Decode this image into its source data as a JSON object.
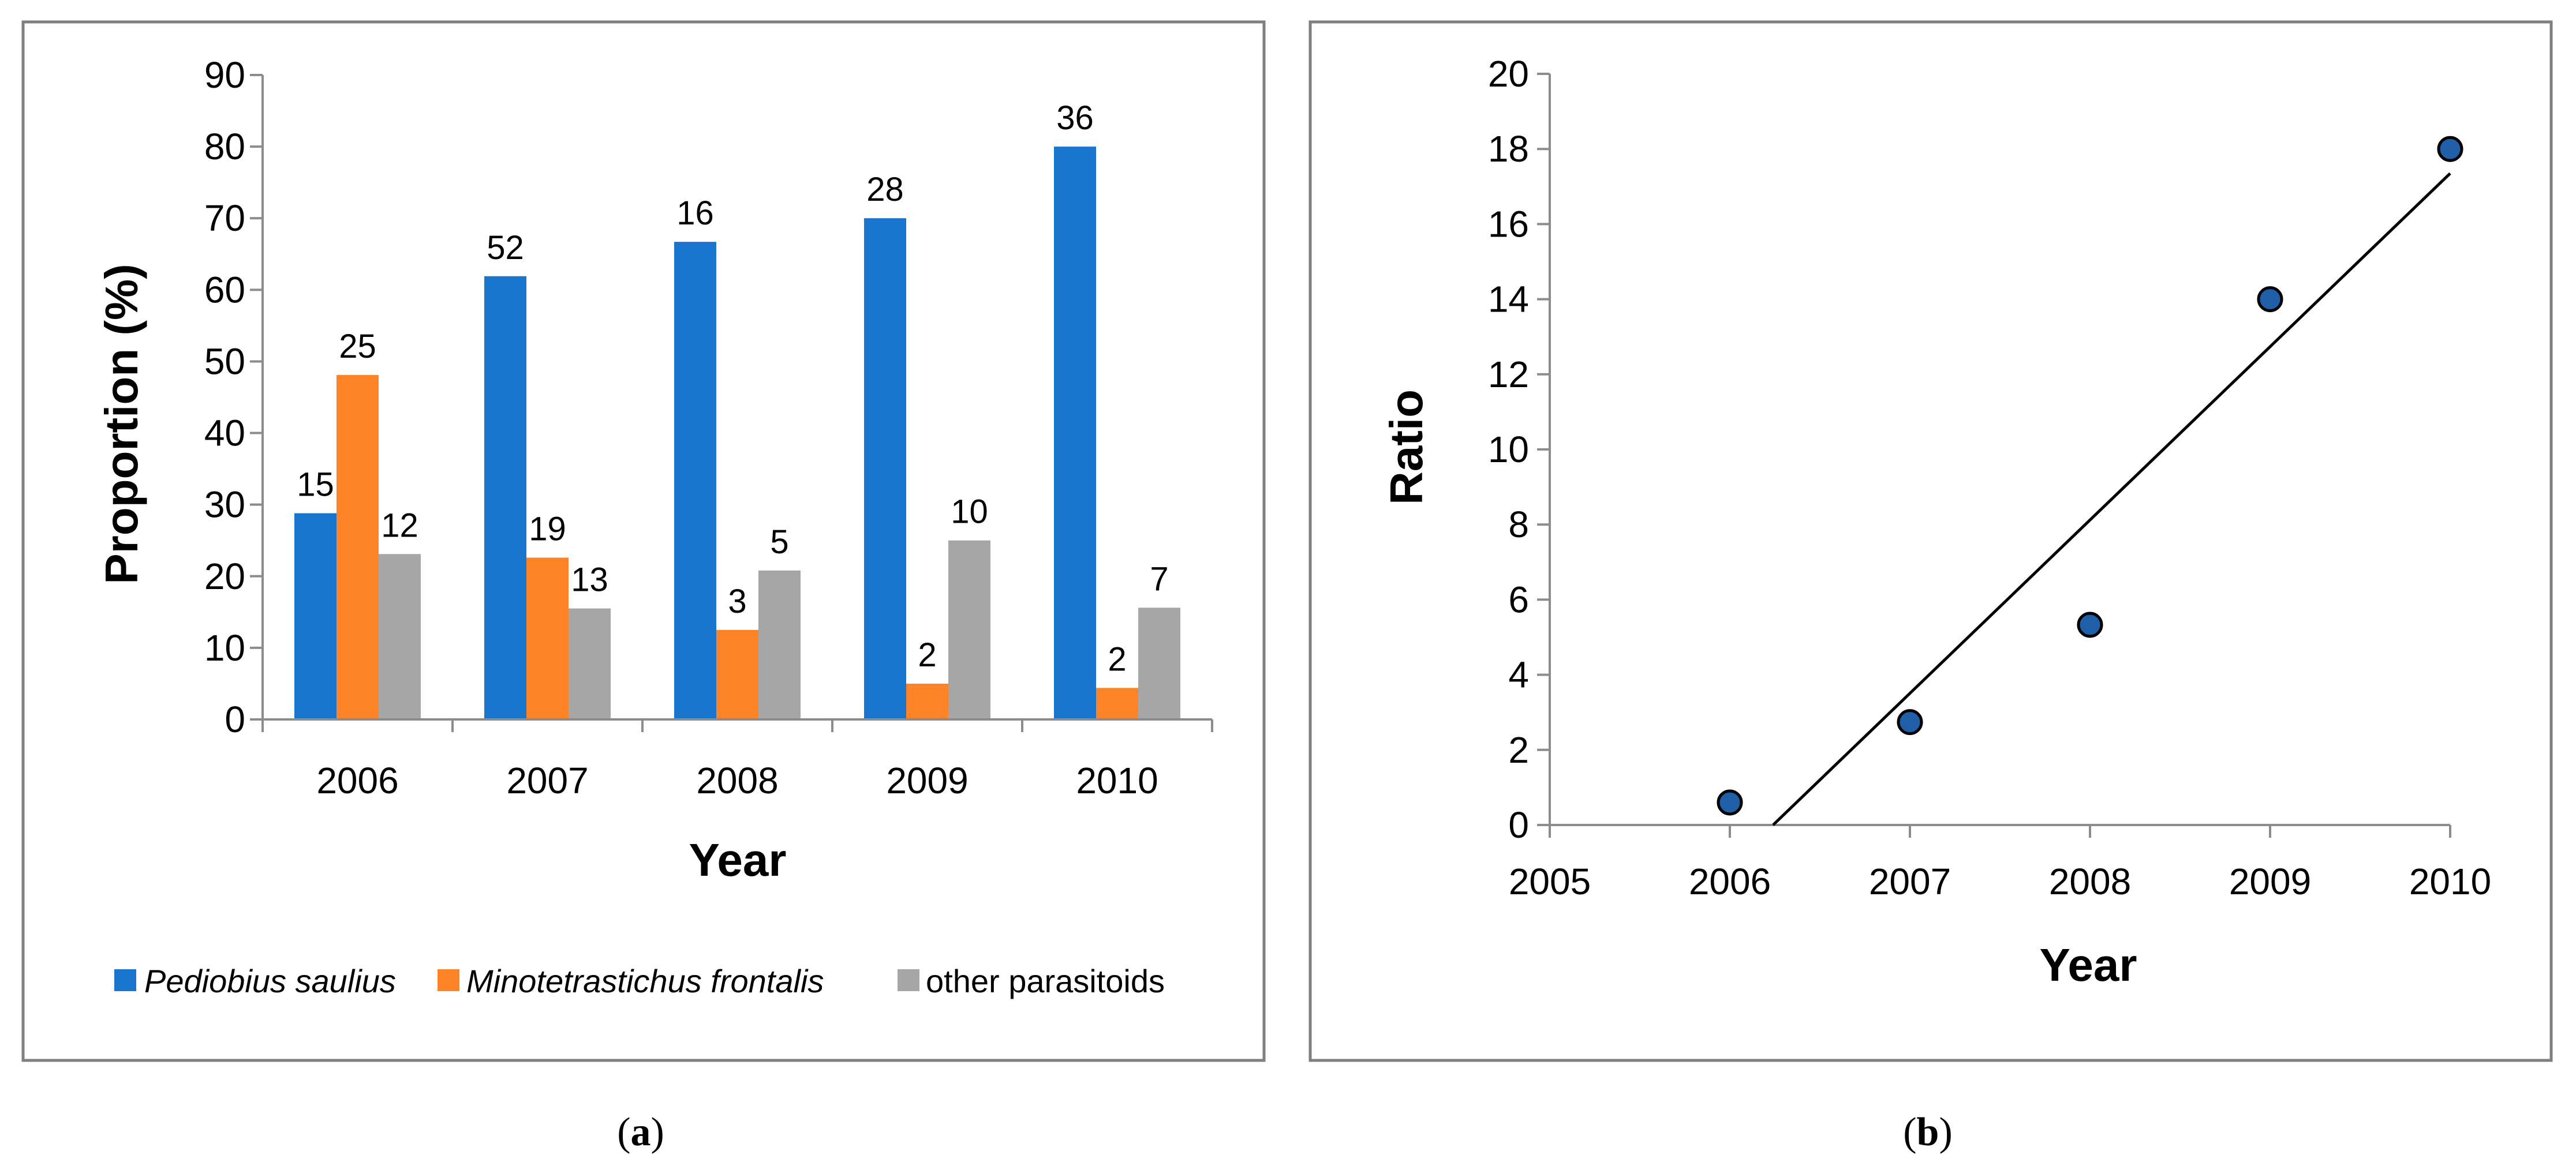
{
  "colors": {
    "pediobius": "#1874CD",
    "minotetrastichus": "#FF8428",
    "other": "#A6A6A6",
    "marker": "#1F5FA8",
    "frame": "#7F7F7F",
    "axis": "#8C8C8C"
  },
  "chart_data": [
    {
      "type": "bar",
      "title": "",
      "xlabel": "Year",
      "ylabel": "Proportion (%)",
      "ylim": [
        0,
        90
      ],
      "yticks": [
        "0",
        "10",
        "20",
        "30",
        "40",
        "50",
        "60",
        "70",
        "80",
        "90"
      ],
      "categories": [
        "2006",
        "2007",
        "2008",
        "2009",
        "2010"
      ],
      "series": [
        {
          "name": "Pediobius saulius",
          "italic": true,
          "values": [
            28.8,
            61.9,
            66.7,
            70.0,
            80.0
          ],
          "labels": [
            "15",
            "52",
            "16",
            "28",
            "36"
          ]
        },
        {
          "name": "Minotetrastichus frontalis",
          "italic": true,
          "values": [
            48.1,
            22.6,
            12.5,
            5.0,
            4.4
          ],
          "labels": [
            "25",
            "19",
            "3",
            "2",
            "2"
          ]
        },
        {
          "name": "other parasitoids",
          "italic": false,
          "values": [
            23.1,
            15.5,
            20.8,
            25.0,
            15.6
          ],
          "labels": [
            "12",
            "13",
            "5",
            "10",
            "7"
          ]
        }
      ],
      "legend_position": "bottom",
      "caption_letter": "a"
    },
    {
      "type": "scatter",
      "title": "",
      "xlabel": "Year",
      "ylabel": "Ratio",
      "xlim": [
        2005,
        2010
      ],
      "ylim": [
        0,
        20
      ],
      "xticks": [
        "2005",
        "2006",
        "2007",
        "2008",
        "2009",
        "2010"
      ],
      "yticks": [
        "0",
        "2",
        "4",
        "6",
        "8",
        "10",
        "12",
        "14",
        "16",
        "18",
        "20"
      ],
      "points": [
        {
          "x": 2006,
          "y": 0.6
        },
        {
          "x": 2007,
          "y": 2.74
        },
        {
          "x": 2008,
          "y": 5.33
        },
        {
          "x": 2009,
          "y": 14.0
        },
        {
          "x": 2010,
          "y": 18.0
        }
      ],
      "trendline": {
        "x": [
          2006.24,
          2010
        ],
        "y": [
          0,
          17.35
        ]
      },
      "caption_letter": "b"
    }
  ]
}
